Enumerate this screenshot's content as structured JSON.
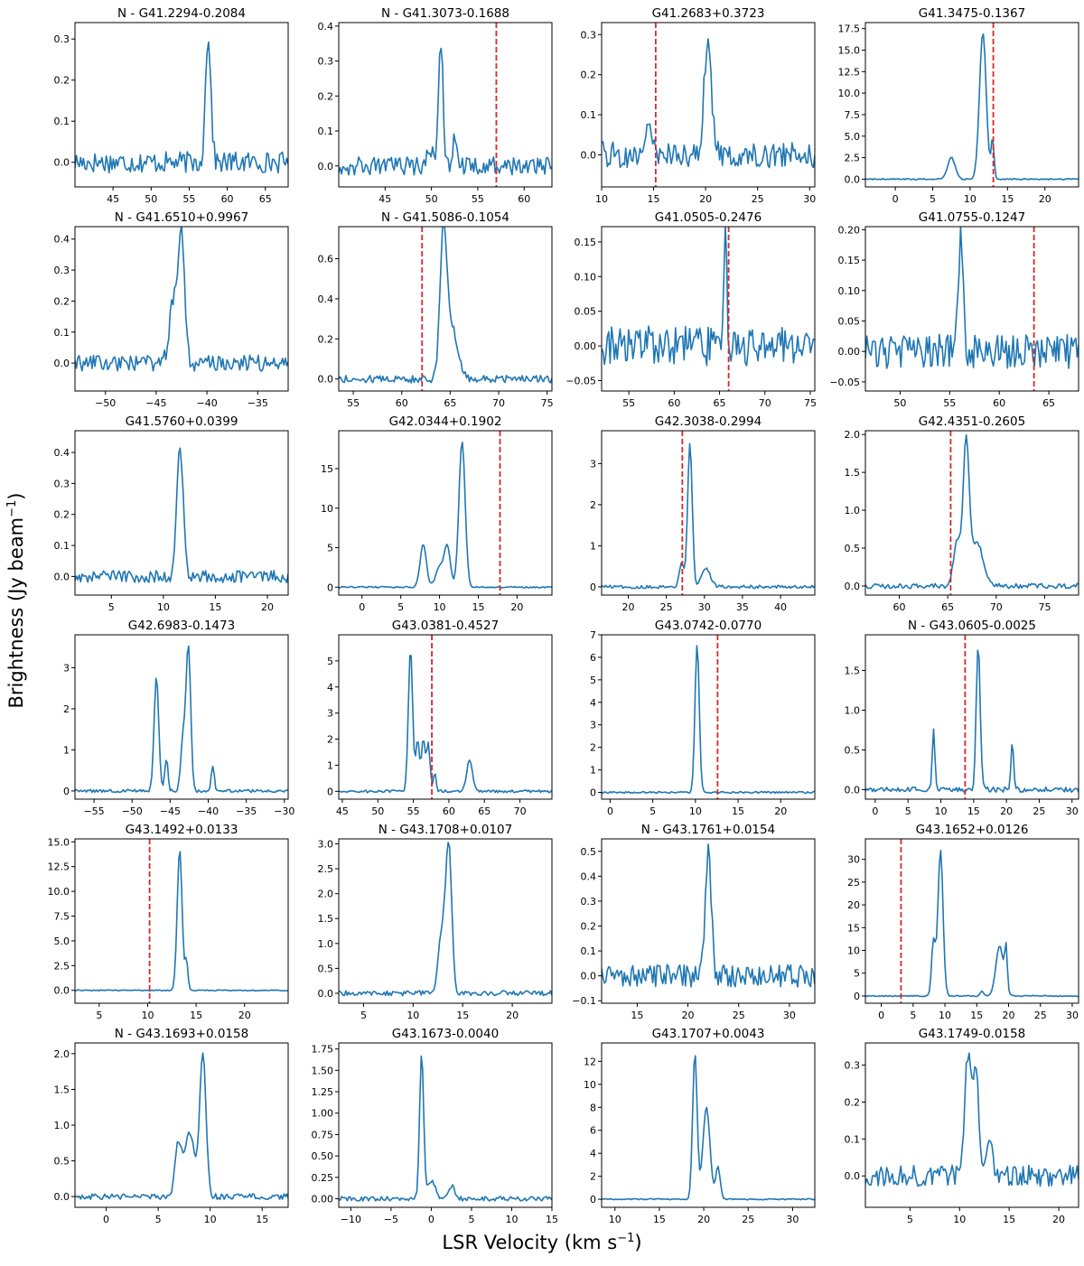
{
  "figure": {
    "ylabel": "Brightness (Jy beam",
    "ylabel_sup": "−1",
    "ylabel_end": ")",
    "xlabel": "LSR Velocity (km s",
    "xlabel_sup": "−1",
    "xlabel_end": ")",
    "line_color": "#1f77b4",
    "vline_color": "#d62728"
  },
  "chart_data": [
    {
      "type": "line",
      "title": "N - G41.2294-0.2084",
      "xlim": [
        40,
        68
      ],
      "ylim": [
        -0.06,
        0.34
      ],
      "xticks": [
        45,
        50,
        55,
        60,
        65
      ],
      "yticks": [
        0.0,
        0.1,
        0.2,
        0.3
      ],
      "peaks": [
        {
          "v": 57.5,
          "a": 0.31,
          "w": 0.35
        }
      ],
      "noise": 0.02,
      "vline": null
    },
    {
      "type": "line",
      "title": "N - G41.3073-0.1688",
      "xlim": [
        40,
        63
      ],
      "ylim": [
        -0.06,
        0.41
      ],
      "xticks": [
        45,
        50,
        55,
        60
      ],
      "yticks": [
        0.0,
        0.1,
        0.2,
        0.3,
        0.4
      ],
      "peaks": [
        {
          "v": 51.0,
          "a": 0.36,
          "w": 0.25
        },
        {
          "v": 52.5,
          "a": 0.09,
          "w": 0.2
        },
        {
          "v": 49.8,
          "a": 0.05,
          "w": 0.3
        }
      ],
      "noise": 0.02,
      "vline": 57.0
    },
    {
      "type": "line",
      "title": "G41.2683+0.3723",
      "xlim": [
        10,
        30.5
      ],
      "ylim": [
        -0.08,
        0.33
      ],
      "xticks": [
        10,
        15,
        20,
        25,
        30
      ],
      "yticks": [
        0.0,
        0.1,
        0.2,
        0.3
      ],
      "peaks": [
        {
          "v": 20.2,
          "a": 0.28,
          "w": 0.35
        },
        {
          "v": 14.6,
          "a": 0.06,
          "w": 0.3
        }
      ],
      "noise": 0.025,
      "vline": 15.2
    },
    {
      "type": "line",
      "title": "G41.3475-0.1367",
      "xlim": [
        -4,
        24.5
      ],
      "ylim": [
        -0.9,
        18.2
      ],
      "xticks": [
        0,
        5,
        10,
        15,
        20
      ],
      "yticks": [
        0.0,
        2.5,
        5.0,
        7.5,
        10.0,
        12.5,
        15.0,
        17.5
      ],
      "peaks": [
        {
          "v": 11.7,
          "a": 17.0,
          "w": 0.45
        },
        {
          "v": 7.5,
          "a": 2.5,
          "w": 0.5
        },
        {
          "v": 13.0,
          "a": 4.5,
          "w": 0.2
        }
      ],
      "noise": 0.06,
      "vline": 13.1
    },
    {
      "type": "line",
      "title": "N - G41.6510+0.9967",
      "xlim": [
        -53,
        -32
      ],
      "ylim": [
        -0.09,
        0.44
      ],
      "xticks": [
        -50,
        -45,
        -40,
        -35
      ],
      "yticks": [
        0.0,
        0.1,
        0.2,
        0.3,
        0.4
      ],
      "peaks": [
        {
          "v": -42.5,
          "a": 0.4,
          "w": 0.3
        },
        {
          "v": -43.3,
          "a": 0.2,
          "w": 0.4
        }
      ],
      "noise": 0.02,
      "vline": null
    },
    {
      "type": "line",
      "title": "N - G41.5086-0.1054",
      "xlim": [
        53.5,
        75.5
      ],
      "ylim": [
        -0.06,
        0.76
      ],
      "xticks": [
        55,
        60,
        65,
        70,
        75
      ],
      "yticks": [
        0.0,
        0.2,
        0.4,
        0.6
      ],
      "peaks": [
        {
          "v": 64.3,
          "a": 0.7,
          "w": 0.35
        },
        {
          "v": 65.2,
          "a": 0.25,
          "w": 0.6
        }
      ],
      "noise": 0.015,
      "vline": 62.1
    },
    {
      "type": "line",
      "title": "G41.0505-0.2476",
      "xlim": [
        52,
        75.5
      ],
      "ylim": [
        -0.065,
        0.172
      ],
      "xticks": [
        55,
        60,
        65,
        70,
        75
      ],
      "yticks": [
        -0.05,
        0.0,
        0.05,
        0.1,
        0.15
      ],
      "peaks": [
        {
          "v": 65.6,
          "a": 0.15,
          "w": 0.2
        }
      ],
      "noise": 0.022,
      "vline": 66.0
    },
    {
      "type": "line",
      "title": "G41.0755-0.1247",
      "xlim": [
        46.5,
        68
      ],
      "ylim": [
        -0.065,
        0.205
      ],
      "xticks": [
        50,
        55,
        60,
        65
      ],
      "yticks": [
        -0.05,
        0.0,
        0.05,
        0.1,
        0.15,
        0.2
      ],
      "peaks": [
        {
          "v": 56.1,
          "a": 0.18,
          "w": 0.25
        }
      ],
      "noise": 0.022,
      "vline": 63.5
    },
    {
      "type": "line",
      "title": "G41.5760+0.0399",
      "xlim": [
        1.5,
        22
      ],
      "ylim": [
        -0.06,
        0.47
      ],
      "xticks": [
        5,
        10,
        15,
        20
      ],
      "yticks": [
        0.0,
        0.1,
        0.2,
        0.3,
        0.4
      ],
      "peaks": [
        {
          "v": 11.6,
          "a": 0.42,
          "w": 0.3
        }
      ],
      "noise": 0.015,
      "vline": null
    },
    {
      "type": "line",
      "title": "G42.0344+0.1902",
      "xlim": [
        -3,
        24.5
      ],
      "ylim": [
        -1.0,
        19.8
      ],
      "xticks": [
        0,
        5,
        10,
        15,
        20
      ],
      "yticks": [
        0,
        5,
        10,
        15
      ],
      "peaks": [
        {
          "v": 12.9,
          "a": 18.5,
          "w": 0.4
        },
        {
          "v": 7.9,
          "a": 5.5,
          "w": 0.4
        },
        {
          "v": 11.0,
          "a": 5.0,
          "w": 0.4
        },
        {
          "v": 10.0,
          "a": 2.5,
          "w": 0.5
        }
      ],
      "noise": 0.07,
      "vline": 17.8
    },
    {
      "type": "line",
      "title": "G42.3038-0.2994",
      "xlim": [
        16.5,
        44.5
      ],
      "ylim": [
        -0.2,
        3.8
      ],
      "xticks": [
        20,
        25,
        30,
        35,
        40
      ],
      "yticks": [
        0,
        1,
        2,
        3
      ],
      "peaks": [
        {
          "v": 28.1,
          "a": 3.5,
          "w": 0.3
        },
        {
          "v": 27.0,
          "a": 0.6,
          "w": 0.3
        },
        {
          "v": 30.2,
          "a": 0.45,
          "w": 0.6
        }
      ],
      "noise": 0.03,
      "vline": 27.1
    },
    {
      "type": "line",
      "title": "G42.4351-0.2605",
      "xlim": [
        56.5,
        78.5
      ],
      "ylim": [
        -0.12,
        2.05
      ],
      "xticks": [
        60,
        65,
        70,
        75
      ],
      "yticks": [
        0.0,
        0.5,
        1.0,
        1.5,
        2.0
      ],
      "peaks": [
        {
          "v": 66.9,
          "a": 1.85,
          "w": 0.3
        },
        {
          "v": 66.0,
          "a": 0.6,
          "w": 0.4
        },
        {
          "v": 68.0,
          "a": 0.6,
          "w": 0.6
        }
      ],
      "noise": 0.025,
      "vline": 65.3
    },
    {
      "type": "line",
      "title": "G42.6983-0.1473",
      "xlim": [
        -57.5,
        -29.5
      ],
      "ylim": [
        -0.2,
        3.8
      ],
      "xticks": [
        -55,
        -50,
        -45,
        -40,
        -35,
        -30
      ],
      "yticks": [
        0,
        1,
        2,
        3
      ],
      "peaks": [
        {
          "v": -42.6,
          "a": 3.5,
          "w": 0.3
        },
        {
          "v": -46.8,
          "a": 2.8,
          "w": 0.3
        },
        {
          "v": -43.3,
          "a": 1.3,
          "w": 0.3
        },
        {
          "v": -45.5,
          "a": 0.8,
          "w": 0.2
        },
        {
          "v": -39.4,
          "a": 0.6,
          "w": 0.2
        }
      ],
      "noise": 0.03,
      "vline": null
    },
    {
      "type": "line",
      "title": "G43.0381-0.4527",
      "xlim": [
        44.5,
        74.5
      ],
      "ylim": [
        -0.3,
        6.0
      ],
      "xticks": [
        45,
        50,
        55,
        60,
        65,
        70
      ],
      "yticks": [
        0,
        1,
        2,
        3,
        4,
        5
      ],
      "peaks": [
        {
          "v": 54.6,
          "a": 5.5,
          "w": 0.3
        },
        {
          "v": 55.6,
          "a": 2.0,
          "w": 0.25
        },
        {
          "v": 56.4,
          "a": 2.0,
          "w": 0.25
        },
        {
          "v": 57.1,
          "a": 1.8,
          "w": 0.25
        },
        {
          "v": 58.0,
          "a": 0.7,
          "w": 0.2
        },
        {
          "v": 62.9,
          "a": 1.2,
          "w": 0.4
        }
      ],
      "noise": 0.04,
      "vline": 57.6
    },
    {
      "type": "line",
      "title": "G43.0742-0.0770",
      "xlim": [
        -1,
        24
      ],
      "ylim": [
        -0.3,
        7.0
      ],
      "xticks": [
        0,
        5,
        10,
        15,
        20
      ],
      "yticks": [
        0,
        1,
        2,
        3,
        4,
        5,
        6,
        7
      ],
      "peaks": [
        {
          "v": 10.2,
          "a": 6.6,
          "w": 0.25
        }
      ],
      "noise": 0.03,
      "vline": 12.6
    },
    {
      "type": "line",
      "title": "N - G43.0605-0.0025",
      "xlim": [
        -1.5,
        31
      ],
      "ylim": [
        -0.12,
        1.95
      ],
      "xticks": [
        0,
        5,
        10,
        15,
        20,
        25,
        30
      ],
      "yticks": [
        0.0,
        0.5,
        1.0,
        1.5
      ],
      "peaks": [
        {
          "v": 15.7,
          "a": 1.85,
          "w": 0.3
        },
        {
          "v": 8.9,
          "a": 0.75,
          "w": 0.2
        },
        {
          "v": 20.9,
          "a": 0.6,
          "w": 0.2
        }
      ],
      "noise": 0.025,
      "vline": 13.7
    },
    {
      "type": "line",
      "title": "G43.1492+0.0133",
      "xlim": [
        2.5,
        24.5
      ],
      "ylim": [
        -1.3,
        15.3
      ],
      "xticks": [
        5,
        10,
        15,
        20
      ],
      "yticks": [
        0.0,
        2.5,
        5.0,
        7.5,
        10.0,
        12.5,
        15.0
      ],
      "peaks": [
        {
          "v": 13.3,
          "a": 14.3,
          "w": 0.25
        },
        {
          "v": 14.0,
          "a": 3.0,
          "w": 0.15
        }
      ],
      "noise": 0.04,
      "vline": 10.2
    },
    {
      "type": "line",
      "title": "N - G43.1708+0.0107",
      "xlim": [
        2.5,
        24
      ],
      "ylim": [
        -0.2,
        3.1
      ],
      "xticks": [
        5,
        10,
        15,
        20
      ],
      "yticks": [
        0.0,
        0.5,
        1.0,
        1.5,
        2.0,
        2.5,
        3.0
      ],
      "peaks": [
        {
          "v": 13.6,
          "a": 2.9,
          "w": 0.3
        },
        {
          "v": 12.9,
          "a": 1.2,
          "w": 0.35
        }
      ],
      "noise": 0.04,
      "vline": null
    },
    {
      "type": "line",
      "title": "N - G43.1761+0.0154",
      "xlim": [
        11.5,
        32.5
      ],
      "ylim": [
        -0.11,
        0.55
      ],
      "xticks": [
        15,
        20,
        25,
        30
      ],
      "yticks": [
        -0.1,
        0.0,
        0.1,
        0.2,
        0.3,
        0.4,
        0.5
      ],
      "peaks": [
        {
          "v": 22.0,
          "a": 0.5,
          "w": 0.3
        }
      ],
      "noise": 0.035,
      "vline": null
    },
    {
      "type": "line",
      "title": "G43.1652+0.0126",
      "xlim": [
        -2.5,
        31
      ],
      "ylim": [
        -1.6,
        34.5
      ],
      "xticks": [
        0,
        5,
        10,
        15,
        20,
        25,
        30
      ],
      "yticks": [
        0,
        5,
        10,
        15,
        20,
        25,
        30
      ],
      "peaks": [
        {
          "v": 9.3,
          "a": 32.0,
          "w": 0.4
        },
        {
          "v": 8.2,
          "a": 12.0,
          "w": 0.3
        },
        {
          "v": 18.6,
          "a": 11.0,
          "w": 0.6
        },
        {
          "v": 19.6,
          "a": 9.0,
          "w": 0.2
        },
        {
          "v": 15.8,
          "a": 1.0,
          "w": 0.3
        }
      ],
      "noise": 0.1,
      "vline": 3.1
    },
    {
      "type": "line",
      "title": "N - G43.1693+0.0158",
      "xlim": [
        -3,
        17.5
      ],
      "ylim": [
        -0.15,
        2.15
      ],
      "xticks": [
        0,
        5,
        10,
        15
      ],
      "yticks": [
        0.0,
        0.5,
        1.0,
        1.5,
        2.0
      ],
      "peaks": [
        {
          "v": 9.3,
          "a": 2.0,
          "w": 0.3
        },
        {
          "v": 8.0,
          "a": 0.9,
          "w": 0.5
        },
        {
          "v": 6.9,
          "a": 0.7,
          "w": 0.3
        }
      ],
      "noise": 0.03,
      "vline": null
    },
    {
      "type": "line",
      "title": "G43.1673-0.0040",
      "xlim": [
        -11.5,
        15
      ],
      "ylim": [
        -0.1,
        1.82
      ],
      "xticks": [
        -10,
        -5,
        0,
        5,
        10,
        15
      ],
      "yticks": [
        0.0,
        0.25,
        0.5,
        0.75,
        1.0,
        1.25,
        1.5,
        1.75
      ],
      "peaks": [
        {
          "v": -1.2,
          "a": 1.7,
          "w": 0.25
        },
        {
          "v": 0.0,
          "a": 0.2,
          "w": 0.5
        },
        {
          "v": 2.5,
          "a": 0.15,
          "w": 0.4
        }
      ],
      "noise": 0.02,
      "vline": null
    },
    {
      "type": "line",
      "title": "G43.1707+0.0043",
      "xlim": [
        8.5,
        32.5
      ],
      "ylim": [
        -0.7,
        13.6
      ],
      "xticks": [
        10,
        15,
        20,
        25,
        30
      ],
      "yticks": [
        0,
        2,
        4,
        6,
        8,
        10,
        12
      ],
      "peaks": [
        {
          "v": 19.0,
          "a": 12.8,
          "w": 0.25
        },
        {
          "v": 20.3,
          "a": 8.0,
          "w": 0.4
        },
        {
          "v": 21.6,
          "a": 2.8,
          "w": 0.25
        }
      ],
      "noise": 0.04,
      "vline": null
    },
    {
      "type": "line",
      "title": "G43.1749-0.0158",
      "xlim": [
        0.5,
        22
      ],
      "ylim": [
        -0.085,
        0.36
      ],
      "xticks": [
        5,
        10,
        15,
        20
      ],
      "yticks": [
        0.0,
        0.1,
        0.2,
        0.3
      ],
      "peaks": [
        {
          "v": 10.8,
          "a": 0.32,
          "w": 0.3
        },
        {
          "v": 11.6,
          "a": 0.3,
          "w": 0.3
        },
        {
          "v": 13.0,
          "a": 0.09,
          "w": 0.3
        }
      ],
      "noise": 0.022,
      "vline": null
    }
  ]
}
